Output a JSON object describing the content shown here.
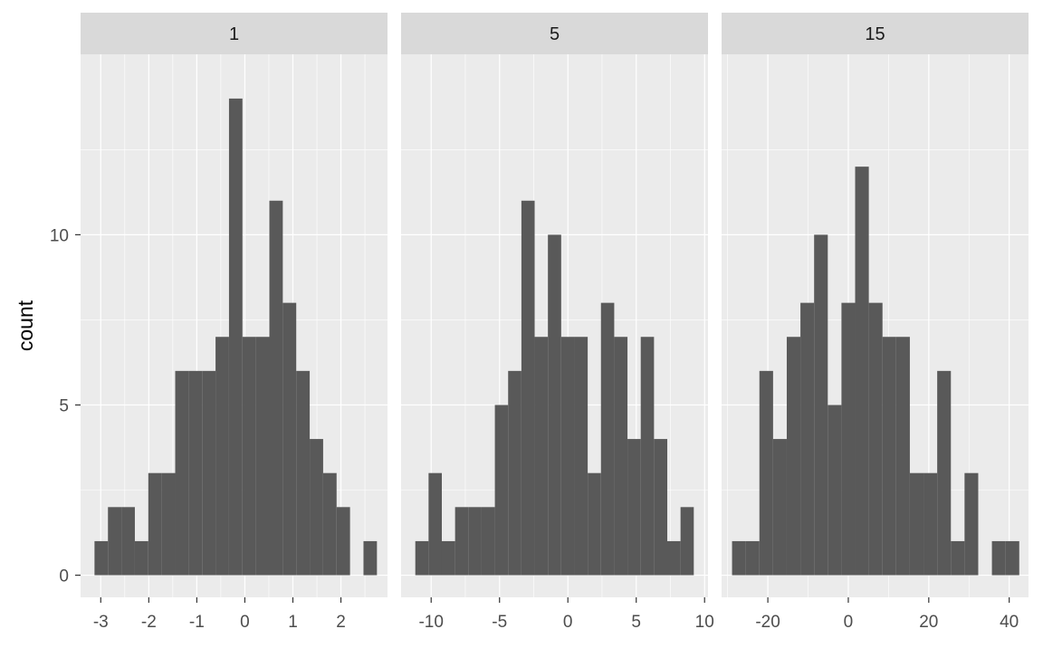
{
  "chart_data": {
    "type": "bar",
    "subtype": "faceted-histogram",
    "ylabel": "count",
    "xlabel": "",
    "ylim": [
      -0.65,
      15.3
    ],
    "y_ticks": [
      0,
      5,
      10
    ],
    "y_tick_labels": [
      "0",
      "5",
      "10"
    ],
    "grid": true,
    "colors": {
      "panel_background": "#EBEBEB",
      "strip_background": "#D9D9D9",
      "gridline": "#FFFFFF",
      "bar_fill": "#595959",
      "axis_text": "#4D4D4D",
      "axis_title": "#000000",
      "strip_text": "#1A1A1A"
    },
    "facets": [
      {
        "strip_label": "1",
        "xlim": [
          -3.42,
          2.97
        ],
        "x_ticks": [
          -3,
          -2,
          -1,
          0,
          1,
          2
        ],
        "x_tick_labels": [
          "-3",
          "-2",
          "-1",
          "0",
          "1",
          "2"
        ],
        "bin_width": 0.28,
        "bins": [
          {
            "x0": -3.13,
            "x1": -2.85,
            "count": 1
          },
          {
            "x0": -2.85,
            "x1": -2.57,
            "count": 2
          },
          {
            "x0": -2.57,
            "x1": -2.29,
            "count": 2
          },
          {
            "x0": -2.29,
            "x1": -2.01,
            "count": 1
          },
          {
            "x0": -2.01,
            "x1": -1.73,
            "count": 3
          },
          {
            "x0": -1.73,
            "x1": -1.45,
            "count": 3
          },
          {
            "x0": -1.45,
            "x1": -1.17,
            "count": 6
          },
          {
            "x0": -1.17,
            "x1": -0.89,
            "count": 6
          },
          {
            "x0": -0.89,
            "x1": -0.61,
            "count": 6
          },
          {
            "x0": -0.61,
            "x1": -0.33,
            "count": 7
          },
          {
            "x0": -0.33,
            "x1": -0.05,
            "count": 14
          },
          {
            "x0": -0.05,
            "x1": 0.23,
            "count": 7
          },
          {
            "x0": 0.23,
            "x1": 0.51,
            "count": 7
          },
          {
            "x0": 0.51,
            "x1": 0.79,
            "count": 11
          },
          {
            "x0": 0.79,
            "x1": 1.07,
            "count": 8
          },
          {
            "x0": 1.07,
            "x1": 1.35,
            "count": 6
          },
          {
            "x0": 1.35,
            "x1": 1.63,
            "count": 4
          },
          {
            "x0": 1.63,
            "x1": 1.91,
            "count": 3
          },
          {
            "x0": 1.91,
            "x1": 2.19,
            "count": 2
          },
          {
            "x0": 2.19,
            "x1": 2.47,
            "count": 0
          },
          {
            "x0": 2.47,
            "x1": 2.75,
            "count": 1
          }
        ]
      },
      {
        "strip_label": "5",
        "xlim": [
          -12.2,
          10.25
        ],
        "x_ticks": [
          -10,
          -5,
          0,
          5,
          10
        ],
        "x_tick_labels": [
          "-10",
          "-5",
          "0",
          "5",
          "10"
        ],
        "bin_width": 0.97,
        "bins": [
          {
            "x0": -11.16,
            "x1": -10.19,
            "count": 1
          },
          {
            "x0": -10.19,
            "x1": -9.22,
            "count": 3
          },
          {
            "x0": -9.22,
            "x1": -8.25,
            "count": 1
          },
          {
            "x0": -8.25,
            "x1": -7.28,
            "count": 2
          },
          {
            "x0": -7.28,
            "x1": -6.31,
            "count": 2
          },
          {
            "x0": -6.31,
            "x1": -5.34,
            "count": 2
          },
          {
            "x0": -5.34,
            "x1": -4.37,
            "count": 5
          },
          {
            "x0": -4.37,
            "x1": -3.4,
            "count": 6
          },
          {
            "x0": -3.4,
            "x1": -2.43,
            "count": 11
          },
          {
            "x0": -2.43,
            "x1": -1.46,
            "count": 7
          },
          {
            "x0": -1.46,
            "x1": -0.49,
            "count": 10
          },
          {
            "x0": -0.49,
            "x1": 0.48,
            "count": 7
          },
          {
            "x0": 0.48,
            "x1": 1.45,
            "count": 7
          },
          {
            "x0": 1.45,
            "x1": 2.42,
            "count": 3
          },
          {
            "x0": 2.42,
            "x1": 3.39,
            "count": 8
          },
          {
            "x0": 3.39,
            "x1": 4.36,
            "count": 7
          },
          {
            "x0": 4.36,
            "x1": 5.33,
            "count": 4
          },
          {
            "x0": 5.33,
            "x1": 6.3,
            "count": 7
          },
          {
            "x0": 6.3,
            "x1": 7.27,
            "count": 4
          },
          {
            "x0": 7.27,
            "x1": 8.24,
            "count": 1
          },
          {
            "x0": 8.24,
            "x1": 9.21,
            "count": 2
          }
        ]
      },
      {
        "strip_label": "15",
        "xlim": [
          -31.5,
          44.8
        ],
        "x_ticks": [
          -20,
          0,
          20,
          40
        ],
        "x_tick_labels": [
          "-20",
          "0",
          "20",
          "40"
        ],
        "bin_width": 3.4,
        "bins": [
          {
            "x0": -28.9,
            "x1": -25.5,
            "count": 1
          },
          {
            "x0": -25.5,
            "x1": -22.1,
            "count": 1
          },
          {
            "x0": -22.1,
            "x1": -18.7,
            "count": 6
          },
          {
            "x0": -18.7,
            "x1": -15.3,
            "count": 4
          },
          {
            "x0": -15.3,
            "x1": -11.9,
            "count": 7
          },
          {
            "x0": -11.9,
            "x1": -8.5,
            "count": 8
          },
          {
            "x0": -8.5,
            "x1": -5.1,
            "count": 10
          },
          {
            "x0": -5.1,
            "x1": -1.7,
            "count": 5
          },
          {
            "x0": -1.7,
            "x1": 1.7,
            "count": 8
          },
          {
            "x0": 1.7,
            "x1": 5.1,
            "count": 12
          },
          {
            "x0": 5.1,
            "x1": 8.5,
            "count": 8
          },
          {
            "x0": 8.5,
            "x1": 11.9,
            "count": 7
          },
          {
            "x0": 11.9,
            "x1": 15.3,
            "count": 7
          },
          {
            "x0": 15.3,
            "x1": 18.7,
            "count": 3
          },
          {
            "x0": 18.7,
            "x1": 22.1,
            "count": 3
          },
          {
            "x0": 22.1,
            "x1": 25.5,
            "count": 6
          },
          {
            "x0": 25.5,
            "x1": 28.9,
            "count": 1
          },
          {
            "x0": 28.9,
            "x1": 32.3,
            "count": 3
          },
          {
            "x0": 32.3,
            "x1": 35.7,
            "count": 0
          },
          {
            "x0": 35.7,
            "x1": 39.1,
            "count": 1
          },
          {
            "x0": 39.1,
            "x1": 42.5,
            "count": 1
          }
        ]
      }
    ]
  }
}
